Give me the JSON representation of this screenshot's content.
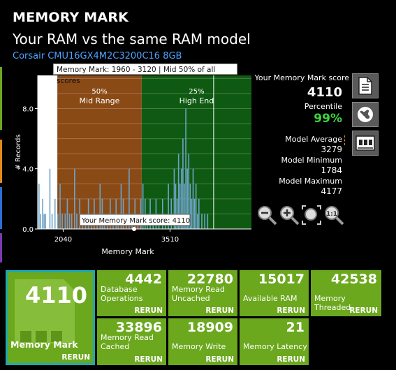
{
  "header": {
    "title": "MEMORY MARK",
    "subtitle": "Your RAM vs the same RAM model",
    "model_link": "Corsair CMU16GX4M2C3200C16 8GB"
  },
  "tooltip": "Memory Mark: 1960 - 3120 | Mid 50% of all scores",
  "colors": {
    "mid_range": "#8a4a16",
    "high_end": "#0f5a12",
    "bars": "#6fa3c8",
    "tile_green": "#6ba81e",
    "selected_border": "#1eaab0",
    "percentile_green": "#3fd33f",
    "link_blue": "#4da3ff"
  },
  "chart_data": {
    "type": "bar",
    "title": "",
    "xlabel": "Memory Mark",
    "ylabel": "# Records",
    "x_tick_labels": [
      "2040",
      "3510"
    ],
    "x_ticks": [
      2040,
      3510
    ],
    "y_tick_labels": [
      "0.0",
      "4.0",
      "8.0"
    ],
    "ylim": [
      0,
      10.2
    ],
    "xlim": [
      1690,
      4630
    ],
    "regions": [
      {
        "pct": "50%",
        "name": "Mid Range",
        "from": 1960,
        "to": 3120
      },
      {
        "pct": "25%",
        "name": "High End",
        "from": 3120,
        "to": 4630
      }
    ],
    "marker_label": "Your Memory Mark score: 4110",
    "marker_value": 4110,
    "grid": true,
    "bins": [
      [
        1700,
        3
      ],
      [
        1720,
        1
      ],
      [
        1750,
        2
      ],
      [
        1770,
        1
      ],
      [
        1790,
        1
      ],
      [
        1850,
        4
      ],
      [
        1880,
        1
      ],
      [
        1920,
        2
      ],
      [
        1960,
        1
      ],
      [
        1990,
        3
      ],
      [
        2020,
        1
      ],
      [
        2060,
        1
      ],
      [
        2090,
        2
      ],
      [
        2120,
        1
      ],
      [
        2150,
        1
      ],
      [
        2190,
        4
      ],
      [
        2220,
        1
      ],
      [
        2260,
        2
      ],
      [
        2300,
        1
      ],
      [
        2340,
        1
      ],
      [
        2380,
        2
      ],
      [
        2420,
        1
      ],
      [
        2460,
        2
      ],
      [
        2500,
        1
      ],
      [
        2540,
        3
      ],
      [
        2570,
        2
      ],
      [
        2600,
        1
      ],
      [
        2640,
        1
      ],
      [
        2680,
        2
      ],
      [
        2720,
        1
      ],
      [
        2760,
        2
      ],
      [
        2790,
        1
      ],
      [
        2830,
        3
      ],
      [
        2860,
        2
      ],
      [
        2900,
        1
      ],
      [
        2940,
        4
      ],
      [
        2980,
        1
      ],
      [
        3020,
        2
      ],
      [
        3060,
        1
      ],
      [
        3100,
        2
      ],
      [
        3130,
        3
      ],
      [
        3160,
        2
      ],
      [
        3190,
        1
      ],
      [
        3230,
        2
      ],
      [
        3270,
        1
      ],
      [
        3310,
        2
      ],
      [
        3350,
        1
      ],
      [
        3400,
        2
      ],
      [
        3440,
        1
      ],
      [
        3480,
        3
      ],
      [
        3520,
        2
      ],
      [
        3560,
        4
      ],
      [
        3580,
        3
      ],
      [
        3600,
        2
      ],
      [
        3620,
        5
      ],
      [
        3640,
        3
      ],
      [
        3660,
        4
      ],
      [
        3680,
        6
      ],
      [
        3700,
        3
      ],
      [
        3720,
        8
      ],
      [
        3740,
        4
      ],
      [
        3760,
        5
      ],
      [
        3780,
        3
      ],
      [
        3800,
        2
      ],
      [
        3820,
        4
      ],
      [
        3840,
        2
      ],
      [
        3860,
        3
      ],
      [
        3880,
        1
      ],
      [
        3900,
        2
      ],
      [
        3940,
        1
      ],
      [
        3980,
        1
      ],
      [
        4020,
        1
      ]
    ]
  },
  "stats": {
    "score_label": "Your Memory Mark score",
    "score": "4110",
    "percentile_label": "Percentile",
    "percentile": "99%",
    "avg_label": "Model Average",
    "avg": "3279",
    "min_label": "Model Minimum",
    "min": "1784",
    "max_label": "Model Maximum",
    "max": "4177"
  },
  "side_buttons": [
    "document-icon",
    "globe-icon",
    "memory-chip-icon"
  ],
  "zoom_buttons": [
    "zoom-out-icon",
    "zoom-in-icon",
    "zoom-fit-icon",
    "zoom-reset-icon"
  ],
  "main_tile": {
    "value": "4110",
    "label": "Memory Mark",
    "rerun": "RERUN"
  },
  "tiles": [
    {
      "value": "4442",
      "label": "Database\nOperations",
      "rerun": "RERUN"
    },
    {
      "value": "22780",
      "label": "Memory Read\nUncached",
      "rerun": "RERUN"
    },
    {
      "value": "15017",
      "label": "Available RAM",
      "rerun": "RERUN"
    },
    {
      "value": "42538",
      "label": "Memory Threaded",
      "rerun": "RERUN"
    },
    {
      "value": "33896",
      "label": "Memory Read\nCached",
      "rerun": "RERUN"
    },
    {
      "value": "18909",
      "label": "Memory Write",
      "rerun": "RERUN"
    },
    {
      "value": "21",
      "label": "Memory Latency",
      "rerun": "RERUN"
    }
  ]
}
